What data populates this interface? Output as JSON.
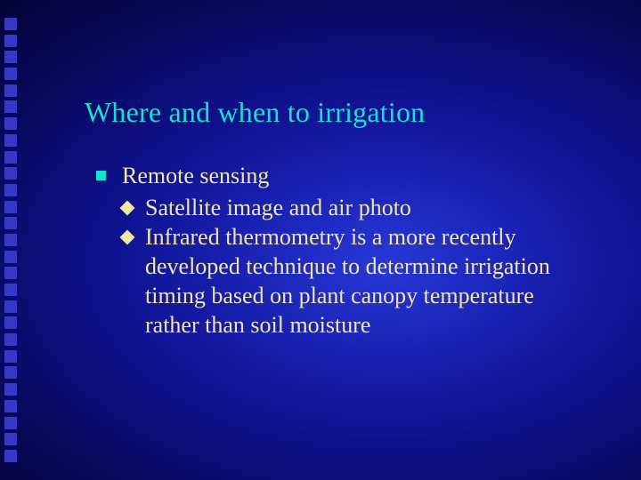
{
  "colors": {
    "title": "#18e0d0",
    "body_text": "#f0e8a0",
    "bullet_level1": "#18e0d0",
    "bullet_level2": "#f0e8a0",
    "decor_square": "#3838c8"
  },
  "typography": {
    "title_fontsize": 32,
    "body_fontsize": 26,
    "font_family": "Times New Roman"
  },
  "title": "Where and when to irrigation",
  "content": {
    "level1_text": "Remote sensing",
    "level2_items": [
      "Satellite image and air photo",
      "Infrared thermometry is a more recently developed technique to determine irrigation timing based on plant canopy temperature rather than soil moisture"
    ]
  },
  "decor": {
    "square_count": 27
  }
}
